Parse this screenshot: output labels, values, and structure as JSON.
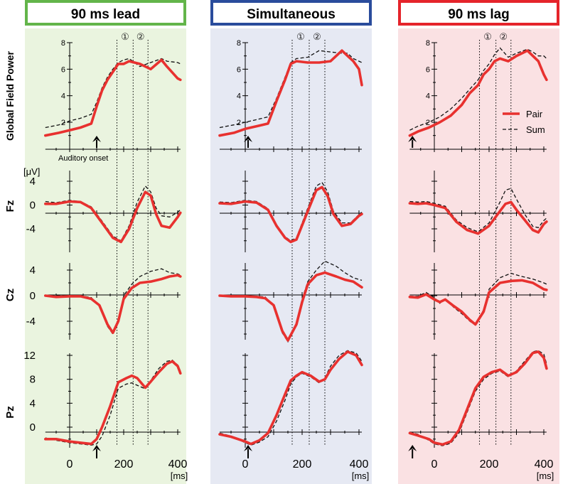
{
  "figure": {
    "row_labels": [
      "Global Field Power",
      "Fz",
      "Cz",
      "Pz"
    ],
    "unit_label": "[μV]",
    "onset_label": "Auditory onset",
    "x_unit": "[ms]",
    "x_ticks": [
      "0",
      "200",
      "400"
    ],
    "window_markers": [
      "①",
      "②"
    ],
    "legend": [
      {
        "label": "Pair",
        "style": "solid",
        "color": "#e8312f"
      },
      {
        "label": "Sum",
        "style": "dashed",
        "color": "#111111"
      }
    ],
    "colors": {
      "pair": "#e8312f",
      "sum": "#111111",
      "axis": "#000000"
    }
  },
  "chart_data": {
    "type": "line",
    "xlim": [
      -90,
      410
    ],
    "x_ticks": [
      0,
      200,
      400
    ],
    "dotted_lines_ms": {
      "lead": [
        175,
        235,
        290
      ],
      "simultaneous": [
        165,
        225,
        280
      ],
      "lag": [
        165,
        225,
        280
      ]
    },
    "rows": [
      {
        "name": "Global Field Power",
        "y_ticks": [
          2,
          4,
          6,
          8
        ],
        "ylim": [
          -1,
          9
        ]
      },
      {
        "name": "Fz",
        "y_ticks": [
          4,
          0,
          -4
        ],
        "ylim": [
          -8.5,
          5
        ]
      },
      {
        "name": "Cz",
        "y_ticks": [
          4,
          0,
          -4
        ],
        "ylim": [
          -8,
          6
        ]
      },
      {
        "name": "Pz",
        "y_ticks": [
          12,
          8,
          4,
          0
        ],
        "ylim": [
          -4,
          14
        ]
      }
    ],
    "panels": [
      {
        "id": "lead",
        "title": "90 ms lead",
        "frame_color": "#63b54a",
        "bg": "#eaf4df",
        "onset_ms": 100,
        "traces": [
          {
            "x": [
              -90,
              -40,
              0,
              40,
              80,
              100,
              120,
              140,
              160,
              180,
              200,
              220,
              260,
              300,
              340,
              360,
              400,
              410
            ],
            "pair": [
              1.0,
              1.2,
              1.4,
              1.6,
              1.9,
              3.2,
              4.4,
              5.2,
              5.8,
              6.4,
              6.4,
              6.6,
              6.4,
              6.0,
              6.7,
              6.2,
              5.3,
              5.2
            ],
            "sum": [
              1.6,
              1.8,
              2.1,
              2.3,
              2.6,
              3.5,
              4.6,
              5.4,
              6.0,
              6.5,
              6.7,
              6.8,
              6.2,
              6.5,
              6.8,
              6.6,
              6.5,
              6.4
            ]
          },
          {
            "x": [
              -90,
              -50,
              0,
              40,
              80,
              120,
              160,
              190,
              220,
              250,
              280,
              300,
              320,
              340,
              370,
              400,
              410
            ],
            "pair": [
              0.2,
              0.2,
              0.6,
              0.5,
              -0.5,
              -3.0,
              -5.5,
              -6.2,
              -4.0,
              -0.5,
              2.2,
              1.6,
              -1.5,
              -3.5,
              -3.8,
              -2.0,
              -1.3
            ],
            "sum": [
              0.6,
              0.4,
              0.8,
              0.6,
              -0.3,
              -2.7,
              -5.2,
              -6.0,
              -3.5,
              0.5,
              3.2,
              2.2,
              -0.5,
              -1.8,
              -2.0,
              -1.2,
              -0.8
            ]
          },
          {
            "x": [
              -90,
              -50,
              0,
              40,
              80,
              110,
              140,
              160,
              180,
              200,
              230,
              260,
              300,
              340,
              370,
              400,
              410
            ],
            "pair": [
              0.0,
              -0.2,
              -0.1,
              -0.1,
              -0.5,
              -1.5,
              -4.5,
              -5.8,
              -4.0,
              -0.5,
              1.2,
              2.0,
              2.2,
              2.6,
              3.0,
              3.2,
              3.0
            ],
            "sum": [
              0.1,
              0.0,
              0.0,
              0.0,
              -0.3,
              -1.6,
              -4.8,
              -6.0,
              -3.8,
              0.0,
              1.8,
              3.0,
              3.8,
              4.2,
              3.6,
              3.4,
              3.2
            ]
          },
          {
            "x": [
              -90,
              -50,
              0,
              40,
              80,
              100,
              120,
              150,
              180,
              210,
              230,
              250,
              280,
              300,
              330,
              360,
              380,
              400,
              410
            ],
            "pair": [
              -2.0,
              -2.0,
              -2.4,
              -2.6,
              -2.8,
              -2.0,
              0.0,
              3.5,
              7.5,
              8.2,
              8.6,
              8.2,
              6.6,
              7.6,
              9.2,
              10.6,
              11.0,
              10.2,
              9.0
            ],
            "sum": [
              -1.8,
              -2.2,
              -2.6,
              -2.8,
              -3.0,
              -2.8,
              -1.5,
              2.0,
              6.5,
              7.2,
              7.4,
              7.0,
              6.4,
              7.8,
              9.8,
              11.0,
              11.2,
              10.4,
              9.4
            ]
          }
        ]
      },
      {
        "id": "simultaneous",
        "title": "Simultaneous",
        "frame_color": "#2a4c9c",
        "bg": "#e6e9f3",
        "onset_ms": 10,
        "traces": [
          {
            "x": [
              -90,
              -40,
              0,
              40,
              80,
              110,
              140,
              160,
              180,
              220,
              260,
              300,
              340,
              360,
              380,
              400,
              410
            ],
            "pair": [
              1.0,
              1.2,
              1.5,
              1.7,
              1.9,
              3.6,
              5.2,
              6.4,
              6.6,
              6.5,
              6.5,
              6.6,
              7.4,
              7.0,
              6.6,
              6.0,
              4.8
            ],
            "sum": [
              1.6,
              1.8,
              2.0,
              2.2,
              2.4,
              3.8,
              5.4,
              6.5,
              6.8,
              6.9,
              7.4,
              7.3,
              7.2,
              7.2,
              6.8,
              6.6,
              6.5
            ]
          },
          {
            "x": [
              -90,
              -50,
              0,
              40,
              80,
              110,
              140,
              160,
              180,
              220,
              250,
              270,
              290,
              310,
              340,
              370,
              400,
              410
            ],
            "pair": [
              0.3,
              0.2,
              0.6,
              0.4,
              -0.8,
              -3.5,
              -5.5,
              -6.2,
              -5.8,
              -1.0,
              2.5,
              3.0,
              1.5,
              -1.5,
              -3.5,
              -3.2,
              -1.8,
              -1.5
            ],
            "sum": [
              0.5,
              0.4,
              0.8,
              0.6,
              -0.6,
              -3.3,
              -5.3,
              -6.0,
              -5.5,
              -0.5,
              3.2,
              3.8,
              2.2,
              -1.0,
              -3.0,
              -3.0,
              -1.6,
              -1.2
            ]
          },
          {
            "x": [
              -90,
              -50,
              0,
              40,
              70,
              100,
              130,
              150,
              180,
              200,
              220,
              250,
              280,
              320,
              350,
              380,
              410
            ],
            "pair": [
              0.0,
              -0.1,
              -0.1,
              -0.2,
              -0.4,
              -1.5,
              -5.5,
              -7.0,
              -4.5,
              -1.0,
              1.8,
              3.2,
              3.6,
              3.0,
              2.5,
              2.2,
              1.3
            ],
            "sum": [
              0.1,
              0.0,
              0.0,
              -0.1,
              -0.2,
              -1.6,
              -5.8,
              -7.2,
              -4.5,
              -0.5,
              2.2,
              4.0,
              5.4,
              4.6,
              3.6,
              2.8,
              2.4
            ]
          },
          {
            "x": [
              -90,
              -50,
              0,
              20,
              50,
              80,
              110,
              140,
              160,
              180,
              200,
              230,
              260,
              280,
              300,
              330,
              360,
              390,
              410
            ],
            "pair": [
              -1.2,
              -1.6,
              -2.4,
              -2.8,
              -2.2,
              -1.0,
              2.0,
              5.5,
              7.8,
              8.6,
              9.2,
              8.6,
              7.6,
              8.0,
              9.6,
              11.4,
              12.6,
              12.0,
              10.4
            ],
            "sum": [
              -1.0,
              -1.5,
              -2.6,
              -3.0,
              -2.5,
              -1.6,
              1.0,
              4.5,
              7.2,
              8.4,
              9.0,
              8.4,
              7.4,
              8.2,
              10.2,
              12.0,
              12.8,
              12.4,
              11.0
            ]
          }
        ]
      },
      {
        "id": "lag",
        "title": "90 ms lag",
        "frame_color": "#e5242b",
        "bg": "#fae1e3",
        "onset_ms": -80,
        "traces": [
          {
            "x": [
              -90,
              -60,
              -20,
              20,
              60,
              100,
              130,
              160,
              180,
              200,
              220,
              240,
              270,
              300,
              340,
              360,
              380,
              400,
              410
            ],
            "pair": [
              1.0,
              1.3,
              1.6,
              2.0,
              2.5,
              3.3,
              4.2,
              4.8,
              5.6,
              6.0,
              6.6,
              6.8,
              6.6,
              7.0,
              7.4,
              7.0,
              6.6,
              5.6,
              5.2
            ],
            "sum": [
              1.4,
              1.7,
              2.0,
              2.4,
              3.0,
              3.8,
              4.5,
              5.2,
              5.9,
              6.4,
              7.1,
              7.6,
              6.9,
              7.2,
              7.5,
              7.3,
              7.0,
              7.0,
              6.8
            ]
          },
          {
            "x": [
              -90,
              -60,
              -30,
              0,
              40,
              80,
              120,
              160,
              200,
              240,
              260,
              280,
              300,
              330,
              360,
              380,
              400,
              410
            ],
            "pair": [
              0.3,
              0.2,
              0.3,
              0.0,
              -0.5,
              -2.8,
              -4.2,
              -4.8,
              -3.5,
              -1.0,
              0.2,
              0.5,
              -0.8,
              -2.5,
              -4.2,
              -4.6,
              -3.2,
              -2.8
            ],
            "sum": [
              0.6,
              0.5,
              0.6,
              0.3,
              -0.2,
              -2.5,
              -3.8,
              -4.5,
              -3.0,
              0.5,
              2.5,
              2.8,
              1.0,
              -1.5,
              -3.6,
              -3.8,
              -2.6,
              -2.2
            ]
          },
          {
            "x": [
              -90,
              -60,
              -30,
              0,
              20,
              40,
              70,
              100,
              130,
              150,
              180,
              200,
              240,
              280,
              320,
              360,
              400,
              410
            ],
            "pair": [
              -0.2,
              -0.3,
              0.2,
              -0.6,
              -1.0,
              -0.6,
              -1.6,
              -2.5,
              -3.8,
              -4.5,
              -2.5,
              0.5,
              2.0,
              2.3,
              2.4,
              2.0,
              1.0,
              0.9
            ],
            "sum": [
              -0.1,
              -0.1,
              0.5,
              -0.3,
              -1.2,
              -0.5,
              -1.8,
              -2.8,
              -4.0,
              -4.6,
              -2.2,
              1.0,
              2.8,
              3.5,
              3.0,
              2.6,
              2.0,
              1.8
            ]
          },
          {
            "x": [
              -90,
              -60,
              -20,
              0,
              30,
              60,
              90,
              120,
              150,
              180,
              210,
              240,
              270,
              300,
              330,
              360,
              380,
              400,
              410
            ],
            "pair": [
              -1.0,
              -1.4,
              -2.0,
              -2.6,
              -2.9,
              -2.4,
              -0.5,
              3.0,
              6.5,
              8.4,
              9.2,
              9.6,
              8.6,
              9.2,
              10.6,
              12.4,
              12.6,
              11.6,
              9.8
            ],
            "sum": [
              -0.8,
              -1.2,
              -2.2,
              -2.8,
              -3.1,
              -2.7,
              -1.0,
              2.5,
              6.0,
              8.0,
              9.0,
              9.4,
              8.4,
              9.4,
              11.0,
              12.6,
              12.8,
              12.2,
              10.6
            ]
          }
        ]
      }
    ]
  }
}
